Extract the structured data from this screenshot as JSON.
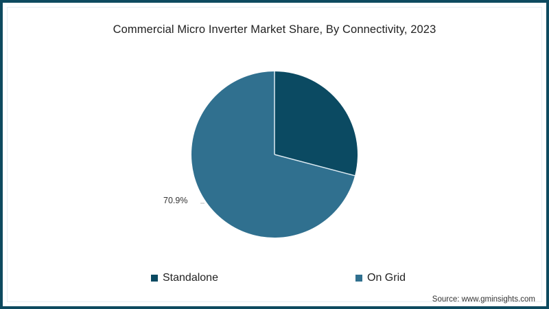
{
  "title": "Commercial Micro Inverter Market Share, By Connectivity, 2023",
  "source": "Source: www.gminsights.com",
  "colors": {
    "frame": "#0d4a5f",
    "standalone": "#0b4a62",
    "on_grid": "#30708f",
    "divider": "#dceaf2"
  },
  "legend": [
    {
      "label": "Standalone",
      "color": "#0b4a62"
    },
    {
      "label": "On Grid",
      "color": "#30708f"
    }
  ],
  "data_labels": {
    "on_grid": "70.9%"
  },
  "chart_data": {
    "type": "pie",
    "title": "Commercial Micro Inverter Market Share, By Connectivity, 2023",
    "categories": [
      "Standalone",
      "On Grid"
    ],
    "values": [
      29.1,
      70.9
    ],
    "unit": "%",
    "labels_shown": {
      "On Grid": "70.9%"
    },
    "legend_position": "bottom",
    "start_angle_deg": 0,
    "direction": "clockwise"
  }
}
